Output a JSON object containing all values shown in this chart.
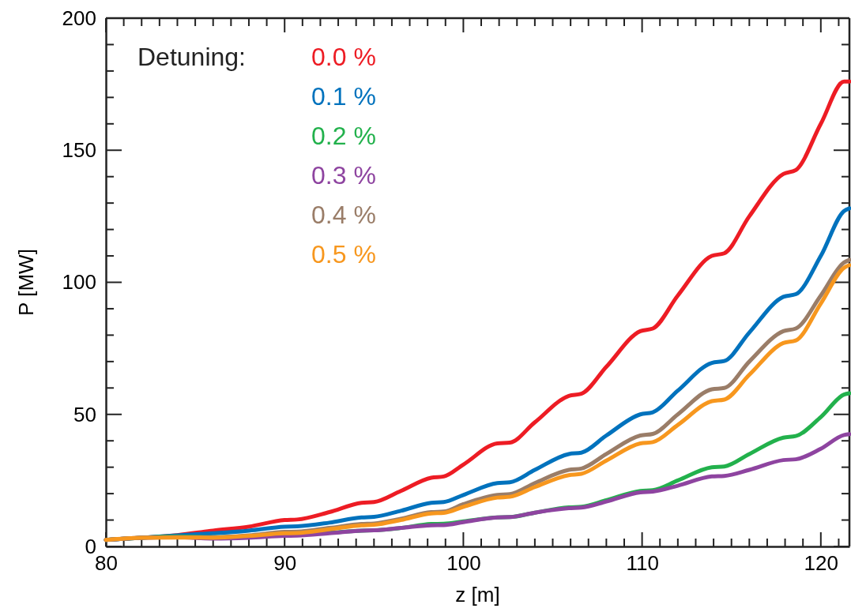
{
  "chart_data": {
    "type": "line",
    "xlabel": "z [m]",
    "ylabel": "P [MW]",
    "legend_title": "Detuning:",
    "legend": "top left",
    "grid": false,
    "marker": "none",
    "line_style": "solid",
    "x": [
      80,
      82,
      84,
      86,
      88,
      90,
      90.7,
      92.5,
      94.3,
      95,
      96.5,
      98.2,
      98.9,
      100,
      101.9,
      102.6,
      104,
      105.9,
      106.6,
      108,
      109.9,
      110.6,
      112,
      113.9,
      114.6,
      116,
      117.9,
      118.6,
      120,
      121.3,
      121.6
    ],
    "xlim": [
      80,
      121.6
    ],
    "xticks": [
      80,
      {
        "value": 81,
        "label": null
      },
      {
        "value": 82,
        "label": null
      },
      {
        "value": 83,
        "label": null
      },
      {
        "value": 84,
        "label": null
      },
      {
        "value": 85,
        "label": null
      },
      {
        "value": 86,
        "label": null
      },
      {
        "value": 87,
        "label": null
      },
      {
        "value": 88,
        "label": null
      },
      {
        "value": 89,
        "label": null
      },
      90,
      {
        "value": 91,
        "label": null
      },
      {
        "value": 92,
        "label": null
      },
      {
        "value": 93,
        "label": null
      },
      {
        "value": 94,
        "label": null
      },
      {
        "value": 95,
        "label": null
      },
      {
        "value": 96,
        "label": null
      },
      {
        "value": 97,
        "label": null
      },
      {
        "value": 98,
        "label": null
      },
      {
        "value": 99,
        "label": null
      },
      100,
      {
        "value": 101,
        "label": null
      },
      {
        "value": 102,
        "label": null
      },
      {
        "value": 103,
        "label": null
      },
      {
        "value": 104,
        "label": null
      },
      {
        "value": 105,
        "label": null
      },
      {
        "value": 106,
        "label": null
      },
      {
        "value": 107,
        "label": null
      },
      {
        "value": 108,
        "label": null
      },
      {
        "value": 109,
        "label": null
      },
      110,
      {
        "value": 111,
        "label": null
      },
      {
        "value": 112,
        "label": null
      },
      {
        "value": 113,
        "label": null
      },
      {
        "value": 114,
        "label": null
      },
      {
        "value": 115,
        "label": null
      },
      {
        "value": 116,
        "label": null
      },
      {
        "value": 117,
        "label": null
      },
      {
        "value": 118,
        "label": null
      },
      {
        "value": 119,
        "label": null
      },
      120,
      {
        "value": 121,
        "label": null
      }
    ],
    "ylim": [
      0,
      200
    ],
    "yticks": [
      0,
      {
        "value": 10,
        "label": null
      },
      {
        "value": 20,
        "label": null
      },
      {
        "value": 30,
        "label": null
      },
      {
        "value": 40,
        "label": null
      },
      50,
      {
        "value": 60,
        "label": null
      },
      {
        "value": 70,
        "label": null
      },
      {
        "value": 80,
        "label": null
      },
      {
        "value": 90,
        "label": null
      },
      100,
      {
        "value": 110,
        "label": null
      },
      {
        "value": 120,
        "label": null
      },
      {
        "value": 130,
        "label": null
      },
      {
        "value": 140,
        "label": null
      },
      150,
      {
        "value": 160,
        "label": null
      },
      {
        "value": 170,
        "label": null
      },
      {
        "value": 180,
        "label": null
      },
      {
        "value": 190,
        "label": null
      },
      200
    ],
    "series": [
      {
        "name": "0.0 %",
        "color": "#ed1c24",
        "values": [
          2.5,
          3.3,
          4.3,
          6,
          7.5,
          10,
          10.2,
          13,
          16.5,
          16.8,
          21,
          26,
          26.5,
          31,
          39,
          39.3,
          47,
          57,
          57.8,
          68,
          81.5,
          82.5,
          95,
          110,
          111,
          125,
          141,
          142.5,
          160,
          176,
          176
        ]
      },
      {
        "name": "0.1 %",
        "color": "#0072bd",
        "values": [
          2.5,
          3.3,
          4.2,
          5,
          6,
          7.5,
          7.6,
          9,
          11,
          11.2,
          13.5,
          16.5,
          16.8,
          19.5,
          24,
          24.3,
          29,
          35,
          35.5,
          42,
          50,
          50.8,
          59,
          69.5,
          70.2,
          81,
          94.5,
          95.5,
          110,
          127,
          128
        ]
      },
      {
        "name": "0.2 %",
        "color": "#22b14c",
        "values": [
          2.5,
          3.3,
          3.8,
          3.5,
          3.8,
          4.5,
          4.6,
          5.2,
          6,
          6.1,
          7,
          8.5,
          8.6,
          9.5,
          11,
          11.1,
          12.8,
          14.8,
          15,
          17.5,
          21,
          21.3,
          25,
          30,
          30.3,
          35,
          41.2,
          41.8,
          49,
          57.5,
          58
        ]
      },
      {
        "name": "0.3 %",
        "color": "#8e44a0",
        "values": [
          2.5,
          3.3,
          3.5,
          3,
          3.3,
          4,
          4.1,
          5,
          6,
          6.1,
          7,
          8,
          8.1,
          9.2,
          11,
          11.1,
          12.8,
          14.5,
          14.7,
          17,
          20.5,
          20.8,
          23,
          26.5,
          26.7,
          29,
          32.7,
          33,
          37,
          42.2,
          42.5
        ]
      },
      {
        "name": "0.4 %",
        "color": "#9a7d68",
        "values": [
          2.5,
          3.3,
          3.5,
          3.5,
          4.2,
          5.5,
          5.6,
          7,
          8.5,
          8.7,
          10.5,
          13,
          13.2,
          16,
          19.5,
          19.8,
          24,
          29,
          29.5,
          35,
          42,
          42.6,
          50,
          59.5,
          60,
          70,
          81.5,
          82.5,
          95,
          107.5,
          108.5
        ]
      },
      {
        "name": "0.5 %",
        "color": "#f7971e",
        "values": [
          2.5,
          3.3,
          3.4,
          3.3,
          4,
          5,
          5.1,
          6.5,
          8,
          8.2,
          10,
          12.5,
          12.7,
          15,
          18.5,
          18.8,
          22.5,
          27,
          27.5,
          32.5,
          39,
          39.5,
          46,
          55,
          55.6,
          65,
          77,
          78,
          92,
          105.5,
          106.5
        ]
      }
    ]
  }
}
